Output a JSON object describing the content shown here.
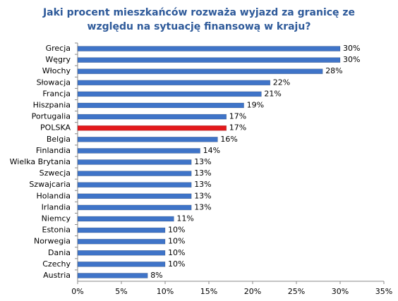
{
  "chart_data": {
    "type": "hbar",
    "title": [
      "Jaki procent mieszkańców rozważa wyjazd za granicę ze",
      "względu na sytuację finansową w kraju?"
    ],
    "categories": [
      "Grecja",
      "Węgry",
      "Włochy",
      "Słowacja",
      "Francja",
      "Hiszpania",
      "Portugalia",
      "POLSKA",
      "Belgia",
      "Finlandia",
      "Wielka Brytania",
      "Szwecja",
      "Szwajcaria",
      "Holandia",
      "Irlandia",
      "Niemcy",
      "Estonia",
      "Norwegia",
      "Dania",
      "Czechy",
      "Austria"
    ],
    "values": [
      30,
      30,
      28,
      22,
      21,
      19,
      17,
      17,
      16,
      14,
      13,
      13,
      13,
      13,
      13,
      11,
      10,
      10,
      10,
      10,
      8
    ],
    "value_labels": [
      "30%",
      "30%",
      "28%",
      "22%",
      "21%",
      "19%",
      "17%",
      "17%",
      "16%",
      "14%",
      "13%",
      "13%",
      "13%",
      "13%",
      "13%",
      "11%",
      "10%",
      "10%",
      "10%",
      "10%",
      "8%"
    ],
    "colors": [
      "#3f74c8",
      "#3f74c8",
      "#3f74c8",
      "#3f74c8",
      "#3f74c8",
      "#3f74c8",
      "#3f74c8",
      "#e3191c",
      "#3f74c8",
      "#3f74c8",
      "#3f74c8",
      "#3f74c8",
      "#3f74c8",
      "#3f74c8",
      "#3f74c8",
      "#3f74c8",
      "#3f74c8",
      "#3f74c8",
      "#3f74c8",
      "#3f74c8",
      "#3f74c8"
    ],
    "xlim": [
      0,
      35
    ],
    "xticks": [
      {
        "value": 0,
        "label": "0%"
      },
      {
        "value": 5,
        "label": "5%"
      },
      {
        "value": 10,
        "label": "10%"
      },
      {
        "value": 15,
        "label": "15%"
      },
      {
        "value": 20,
        "label": "20%"
      },
      {
        "value": 25,
        "label": "25%"
      },
      {
        "value": 30,
        "label": "30%"
      },
      {
        "value": 35,
        "label": "35%"
      }
    ]
  }
}
